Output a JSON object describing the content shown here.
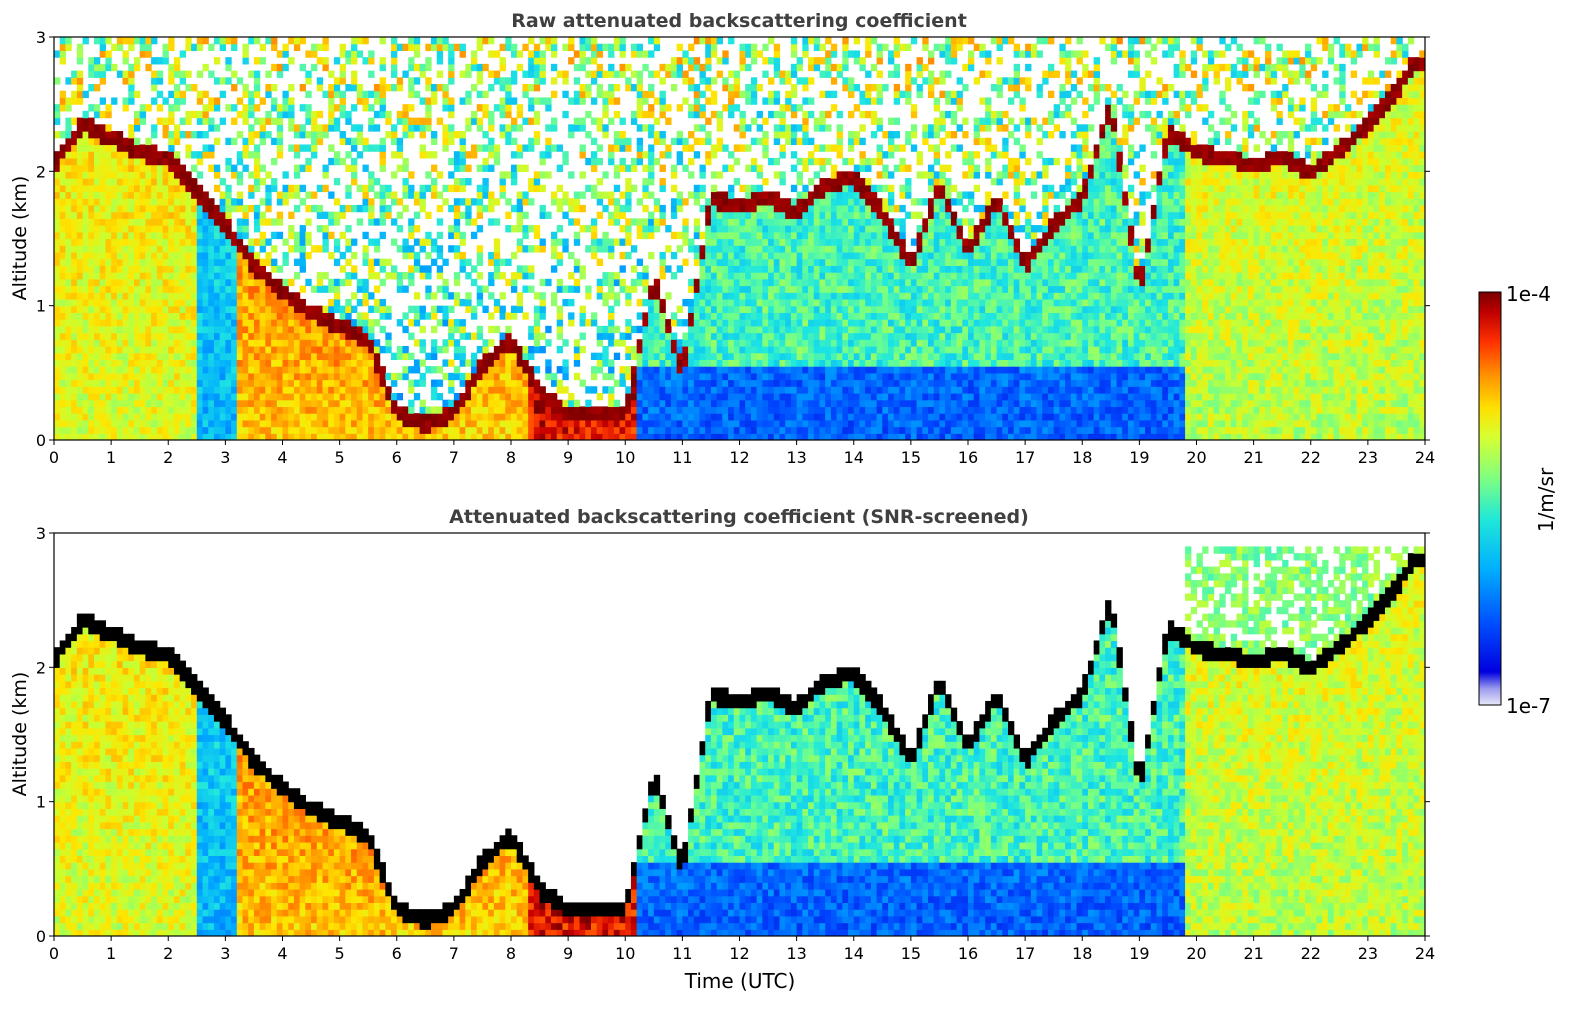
{
  "chart_data": [
    {
      "type": "heatmap",
      "title": "Raw attenuated backscattering coefficient",
      "xlabel": "",
      "ylabel": "Altitude (km)",
      "xlim": [
        0,
        24
      ],
      "ylim": [
        0,
        3
      ],
      "xticks": [
        "0",
        "1",
        "2",
        "3",
        "4",
        "5",
        "6",
        "7",
        "8",
        "9",
        "10",
        "11",
        "12",
        "13",
        "14",
        "15",
        "16",
        "17",
        "18",
        "19",
        "20",
        "21",
        "22",
        "23",
        "24"
      ],
      "yticks": [
        "0",
        "1",
        "2",
        "3"
      ],
      "colorscale": "jet",
      "noise_above_signal": true,
      "cloud_layer_km": [
        [
          0.0,
          2.05
        ],
        [
          0.5,
          2.35
        ],
        [
          1.0,
          2.25
        ],
        [
          1.5,
          2.15
        ],
        [
          2.0,
          2.1
        ],
        [
          2.5,
          1.85
        ],
        [
          3.0,
          1.6
        ],
        [
          3.5,
          1.3
        ],
        [
          4.0,
          1.1
        ],
        [
          4.5,
          0.95
        ],
        [
          5.0,
          0.85
        ],
        [
          5.5,
          0.75
        ],
        [
          6.0,
          0.2
        ],
        [
          6.5,
          0.12
        ],
        [
          7.0,
          0.2
        ],
        [
          7.5,
          0.55
        ],
        [
          8.0,
          0.75
        ],
        [
          8.5,
          0.35
        ],
        [
          9.0,
          0.2
        ],
        [
          9.5,
          0.2
        ],
        [
          10.0,
          0.2
        ],
        [
          10.5,
          1.2
        ],
        [
          11.0,
          0.5
        ],
        [
          11.5,
          1.8
        ],
        [
          12.0,
          1.75
        ],
        [
          12.5,
          1.8
        ],
        [
          13.0,
          1.7
        ],
        [
          13.5,
          1.9
        ],
        [
          14.0,
          1.95
        ],
        [
          14.5,
          1.7
        ],
        [
          15.0,
          1.3
        ],
        [
          15.5,
          1.9
        ],
        [
          16.0,
          1.4
        ],
        [
          16.5,
          1.8
        ],
        [
          17.0,
          1.3
        ],
        [
          17.5,
          1.6
        ],
        [
          18.0,
          1.8
        ],
        [
          18.5,
          2.5
        ],
        [
          19.0,
          1.1
        ],
        [
          19.5,
          2.3
        ],
        [
          20.0,
          2.15
        ],
        [
          20.5,
          2.1
        ],
        [
          21.0,
          2.05
        ],
        [
          21.5,
          2.1
        ],
        [
          22.0,
          2.0
        ],
        [
          22.5,
          2.15
        ],
        [
          23.0,
          2.35
        ],
        [
          23.5,
          2.6
        ],
        [
          23.8,
          2.8
        ]
      ]
    },
    {
      "type": "heatmap",
      "title": "Attenuated backscattering coefficient (SNR-screened)",
      "xlabel": "Time (UTC)",
      "ylabel": "Altitude (km)",
      "xlim": [
        0,
        24
      ],
      "ylim": [
        0,
        3
      ],
      "xticks": [
        "0",
        "1",
        "2",
        "3",
        "4",
        "5",
        "6",
        "7",
        "8",
        "9",
        "10",
        "11",
        "12",
        "13",
        "14",
        "15",
        "16",
        "17",
        "18",
        "19",
        "20",
        "21",
        "22",
        "23",
        "24"
      ],
      "yticks": [
        "0",
        "1",
        "2",
        "3"
      ],
      "colorscale": "jet",
      "noise_above_signal": false,
      "cloud_layer_km": [
        [
          0.0,
          2.05
        ],
        [
          0.5,
          2.35
        ],
        [
          1.0,
          2.25
        ],
        [
          1.5,
          2.15
        ],
        [
          2.0,
          2.1
        ],
        [
          2.5,
          1.85
        ],
        [
          3.0,
          1.6
        ],
        [
          3.5,
          1.3
        ],
        [
          4.0,
          1.1
        ],
        [
          4.5,
          0.95
        ],
        [
          5.0,
          0.85
        ],
        [
          5.5,
          0.75
        ],
        [
          6.0,
          0.2
        ],
        [
          6.5,
          0.12
        ],
        [
          7.0,
          0.2
        ],
        [
          7.5,
          0.55
        ],
        [
          8.0,
          0.75
        ],
        [
          8.5,
          0.35
        ],
        [
          9.0,
          0.2
        ],
        [
          9.5,
          0.2
        ],
        [
          10.0,
          0.2
        ],
        [
          10.5,
          1.2
        ],
        [
          11.0,
          0.5
        ],
        [
          11.5,
          1.8
        ],
        [
          12.0,
          1.75
        ],
        [
          12.5,
          1.8
        ],
        [
          13.0,
          1.7
        ],
        [
          13.5,
          1.9
        ],
        [
          14.0,
          1.95
        ],
        [
          14.5,
          1.7
        ],
        [
          15.0,
          1.3
        ],
        [
          15.5,
          1.9
        ],
        [
          16.0,
          1.4
        ],
        [
          16.5,
          1.8
        ],
        [
          17.0,
          1.3
        ],
        [
          17.5,
          1.6
        ],
        [
          18.0,
          1.8
        ],
        [
          18.5,
          2.5
        ],
        [
          19.0,
          1.1
        ],
        [
          19.5,
          2.3
        ],
        [
          20.0,
          2.15
        ],
        [
          20.5,
          2.1
        ],
        [
          21.0,
          2.05
        ],
        [
          21.5,
          2.1
        ],
        [
          22.0,
          2.0
        ],
        [
          22.5,
          2.15
        ],
        [
          23.0,
          2.35
        ],
        [
          23.5,
          2.6
        ],
        [
          23.8,
          2.8
        ]
      ]
    }
  ],
  "colorbar": {
    "label": "1/m/sr",
    "max_label": "1e-4",
    "min_label": "1e-7",
    "colors": [
      "#7f0000",
      "#d40000",
      "#ff3f00",
      "#ff9a00",
      "#ffe600",
      "#c0ff36",
      "#6aff8d",
      "#1fe7e3",
      "#00aaff",
      "#004cff",
      "#0000d0",
      "#b3b3ee"
    ]
  }
}
